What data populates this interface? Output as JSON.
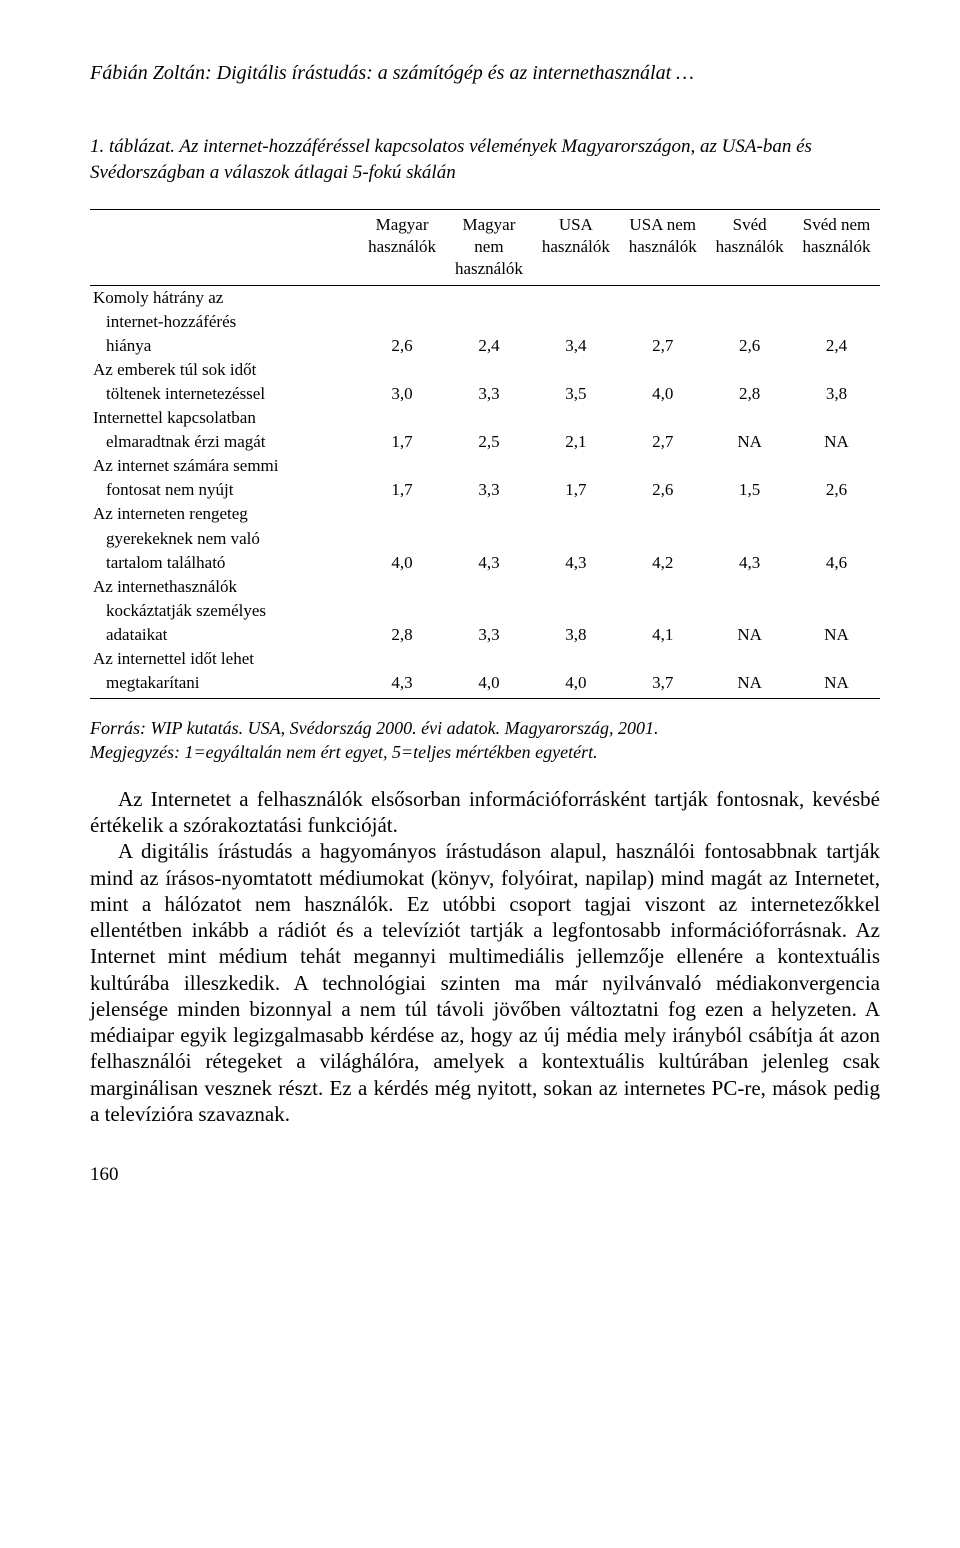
{
  "header": {
    "title": "Fábián Zoltán: Digitális írástudás: a számítógép és az internethasználat …"
  },
  "table": {
    "caption_num": "1. táblázat.",
    "caption_text": " Az internet-hozzáféréssel kapcsolatos vélemények Magyarországon, az USA-ban és Svédországban a válaszok átlagai 5-fokú skálán",
    "columns": [
      "",
      "Magyar használók",
      "Magyar nem használók",
      "USA használók",
      "USA nem használók",
      "Svéd használók",
      "Svéd nem használók"
    ],
    "rows": [
      {
        "label_lines": [
          "Komoly hátrány az",
          "internet-hozzáférés",
          "hiánya"
        ],
        "values": [
          "2,6",
          "2,4",
          "3,4",
          "2,7",
          "2,6",
          "2,4"
        ]
      },
      {
        "label_lines": [
          "Az emberek túl sok időt",
          "töltenek internetezéssel"
        ],
        "values": [
          "3,0",
          "3,3",
          "3,5",
          "4,0",
          "2,8",
          "3,8"
        ]
      },
      {
        "label_lines": [
          "Internettel kapcsolatban",
          "elmaradtnak érzi magát"
        ],
        "values": [
          "1,7",
          "2,5",
          "2,1",
          "2,7",
          "NA",
          "NA"
        ]
      },
      {
        "label_lines": [
          "Az internet számára semmi",
          "fontosat nem nyújt"
        ],
        "values": [
          "1,7",
          "3,3",
          "1,7",
          "2,6",
          "1,5",
          "2,6"
        ]
      },
      {
        "label_lines": [
          "Az interneten rengeteg",
          "gyerekeknek nem való",
          "tartalom található"
        ],
        "values": [
          "4,0",
          "4,3",
          "4,3",
          "4,2",
          "4,3",
          "4,6"
        ]
      },
      {
        "label_lines": [
          "Az internethasználók",
          "kockáztatják személyes",
          "adataikat"
        ],
        "values": [
          "2,8",
          "3,3",
          "3,8",
          "4,1",
          "NA",
          "NA"
        ]
      },
      {
        "label_lines": [
          "Az internettel időt lehet",
          "megtakarítani"
        ],
        "values": [
          "4,3",
          "4,0",
          "4,0",
          "3,7",
          "NA",
          "NA"
        ]
      }
    ]
  },
  "source": {
    "line1": "Forrás: WIP kutatás. USA, Svédország 2000. évi adatok. Magyarország, 2001.",
    "line2": "Megjegyzés: 1=egyáltalán nem ért egyet, 5=teljes mértékben egyetért."
  },
  "body": {
    "p1": "Az Internetet a felhasználók elsősorban információforrásként tartják fontosnak, kevésbé értékelik a szórakoztatási funkcióját.",
    "p2": "A digitális írástudás a hagyományos írástudáson alapul, használói fontosabbnak tartják mind az írásos-nyomtatott médiumokat (könyv, folyóirat, napilap) mind magát az Internetet, mint a hálózatot nem használók. Ez utóbbi csoport tagjai viszont az internetezőkkel ellentétben inkább a rádiót és a televíziót tartják a legfontosabb információforrásnak. Az Internet mint médium tehát megannyi multimediális jellemzője ellenére a kontextuális kultúrába illeszkedik. A technológiai szinten ma már nyilvánvaló médiakonvergencia jelensége minden bizonnyal a nem túl távoli jövőben változtatni fog ezen a helyzeten. A médiaipar egyik legizgalmasabb kérdése az, hogy az új média mely irányból csábítja át azon felhasználói rétegeket a világhálóra, amelyek a kontextuális kultúrában jelenleg csak marginálisan vesznek részt. Ez a kérdés még nyitott, sokan az internetes PC-re, mások pedig a televízióra szavaznak."
  },
  "page_number": "160"
}
